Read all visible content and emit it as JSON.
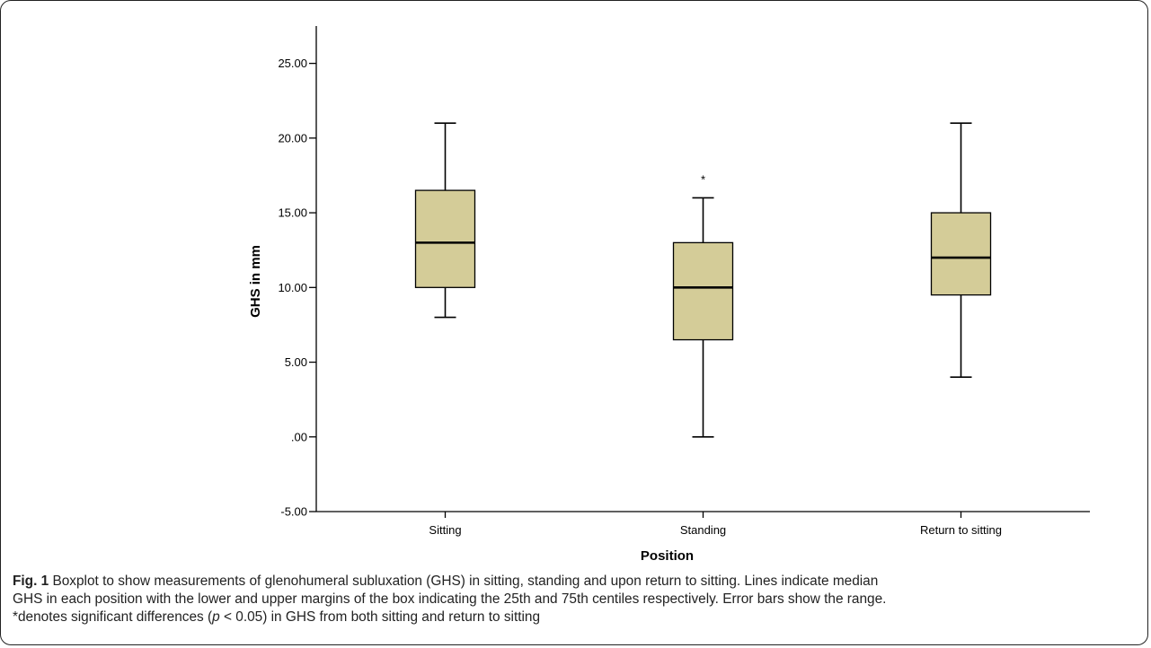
{
  "chart_data": {
    "type": "box",
    "xlabel": "Position",
    "ylabel": "GHS in mm",
    "ylim": [
      -5,
      27.5
    ],
    "y_ticks": [
      -5,
      0,
      5,
      10,
      15,
      20,
      25
    ],
    "y_tick_labels": [
      "-5.00",
      ".00",
      "5.00",
      "10.00",
      "15.00",
      "20.00",
      "25.00"
    ],
    "categories": [
      "Sitting",
      "Standing",
      "Return to sitting"
    ],
    "boxes": [
      {
        "category": "Sitting",
        "min": 8,
        "q1": 10,
        "median": 13,
        "q3": 16.5,
        "max": 21,
        "outliers": []
      },
      {
        "category": "Standing",
        "min": 0,
        "q1": 6.5,
        "median": 10,
        "q3": 13,
        "max": 16,
        "outliers": [
          {
            "value": 17.5,
            "marker": "*"
          }
        ]
      },
      {
        "category": "Return to sitting",
        "min": 4,
        "q1": 9.5,
        "median": 12,
        "q3": 15,
        "max": 21,
        "outliers": []
      }
    ],
    "box_color": "#d4cc98",
    "grid": false
  },
  "caption": {
    "label": "Fig. 1",
    "line1": " Boxplot to show measurements of glenohumeral subluxation (GHS) in sitting, standing and upon return to sitting. Lines indicate median",
    "line2": "GHS in each position with the lower and upper margins of the box indicating the 25th and 75th centiles respectively. Error bars show the range.",
    "line3_a": "*denotes significant differences (",
    "line3_p": "p",
    "line3_b": " < 0.05) in GHS from both sitting and return to sitting"
  }
}
